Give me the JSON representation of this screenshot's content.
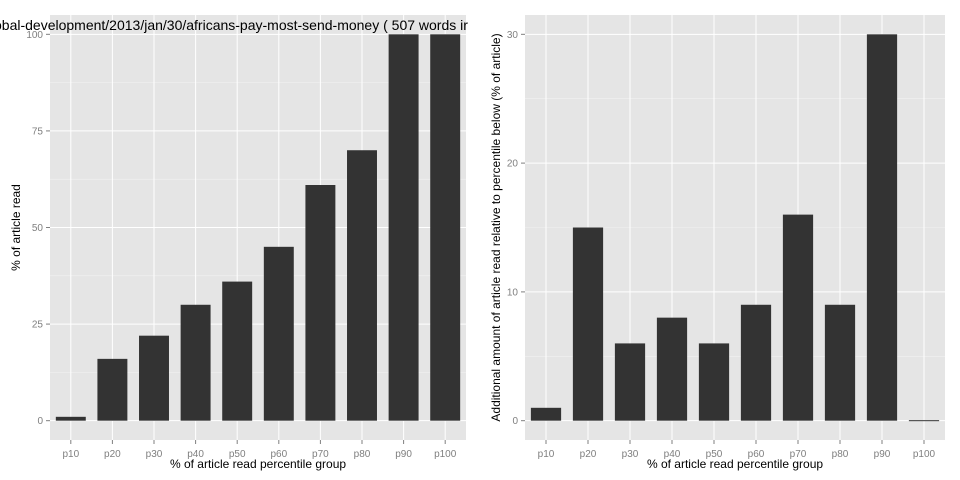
{
  "chart_data": [
    {
      "type": "bar",
      "title": "obal-development/2013/jan/30/africans-pay-most-send-money ( 507 words ir",
      "xlabel": "% of article read percentile group",
      "ylabel": "% of article read",
      "categories": [
        "p10",
        "p20",
        "p30",
        "p40",
        "p50",
        "p60",
        "p70",
        "p80",
        "p90",
        "p100"
      ],
      "values": [
        1,
        16,
        22,
        30,
        36,
        45,
        61,
        70,
        100,
        100
      ],
      "ylim": [
        -5,
        105
      ],
      "yticks": [
        0,
        25,
        50,
        75,
        100
      ],
      "ytick_labels": [
        "0",
        "25",
        "50",
        "75",
        "100"
      ],
      "grid": true,
      "bar_color": "#333333",
      "panel_color": "#e5e5e5"
    },
    {
      "type": "bar",
      "title": "",
      "xlabel": "% of article read percentile group",
      "ylabel": "Additional amount of article read relative to percentile below (% of article)",
      "categories": [
        "p10",
        "p20",
        "p30",
        "p40",
        "p50",
        "p60",
        "p70",
        "p80",
        "p90",
        "p100"
      ],
      "values": [
        1,
        15,
        6,
        8,
        6,
        9,
        16,
        9,
        30,
        0
      ],
      "ylim": [
        -1.5,
        31.5
      ],
      "yticks": [
        0,
        10,
        20,
        30
      ],
      "ytick_labels": [
        "0",
        "10",
        "20",
        "30"
      ],
      "grid": true,
      "bar_color": "#333333",
      "panel_color": "#e5e5e5"
    }
  ]
}
